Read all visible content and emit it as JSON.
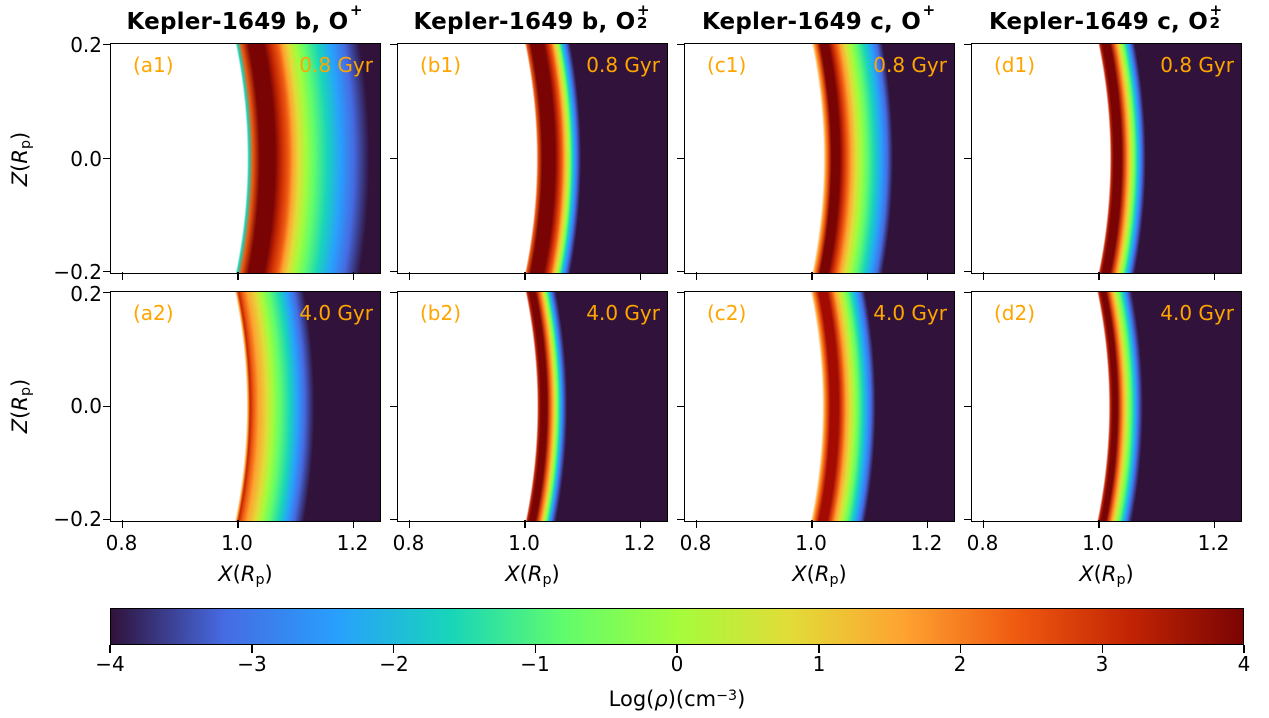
{
  "figure": {
    "annotation_color": "#ffa500",
    "background_color": "#ffffff",
    "columns": [
      {
        "title_prefix": "Kepler-1649 b, O",
        "title_sub": "",
        "title_sup": "+"
      },
      {
        "title_prefix": "Kepler-1649 b, O",
        "title_sub": "2",
        "title_sup": "+"
      },
      {
        "title_prefix": "Kepler-1649 c, O",
        "title_sub": "",
        "title_sup": "+"
      },
      {
        "title_prefix": "Kepler-1649 c, O",
        "title_sub": "2",
        "title_sup": "+"
      }
    ],
    "panels": [
      {
        "label": "(a1)",
        "time": "0.8 Gyr"
      },
      {
        "label": "(b1)",
        "time": "0.8 Gyr"
      },
      {
        "label": "(c1)",
        "time": "0.8 Gyr"
      },
      {
        "label": "(d1)",
        "time": "0.8 Gyr"
      },
      {
        "label": "(a2)",
        "time": "4.0 Gyr"
      },
      {
        "label": "(b2)",
        "time": "4.0 Gyr"
      },
      {
        "label": "(c2)",
        "time": "4.0 Gyr"
      },
      {
        "label": "(d2)",
        "time": "4.0 Gyr"
      }
    ],
    "axes": {
      "x_ticks": [
        "0.8",
        "1.0",
        "1.2"
      ],
      "z_ticks": [
        "0.2",
        "0.0",
        "−0.2"
      ],
      "x_label": {
        "v": "X",
        "open": "(",
        "r": "R",
        "sub": "p",
        "close": ")"
      },
      "z_label": {
        "v": "Z",
        "open": "(",
        "r": "R",
        "sub": "p",
        "close": ")"
      }
    },
    "colorbar": {
      "ticks": [
        "−4",
        "−3",
        "−2",
        "−1",
        "0",
        "1",
        "2",
        "3",
        "4"
      ],
      "label": {
        "pre": "Log(",
        "rho": "ρ",
        "mid": ")(cm",
        "exp": "−3",
        "close": ")"
      }
    }
  },
  "chart_data": {
    "type": "heatmap",
    "description": "2x4 grid of 2D ion density slices around Kepler-1649 b and c for O+ and O2+ at ages 0.8 Gyr and 4.0 Gyr. Density forms a thin shell just above the planet surface (r ≈ 1 planetary radius) peaking near Log(ρ)=4 and decaying outward to the background value of −4.",
    "x_axis": {
      "label": "X(R_p)",
      "ticks": [
        0.8,
        1.0,
        1.2
      ],
      "range": [
        0.78,
        1.25
      ]
    },
    "z_axis": {
      "label": "Z(R_p)",
      "ticks": [
        0.2,
        0.0,
        -0.2
      ],
      "range": [
        -0.21,
        0.21
      ]
    },
    "colorbar": {
      "label": "Log(ρ)(cm−3)",
      "range": [
        -4,
        4
      ],
      "ticks": [
        -4,
        -3,
        -2,
        -1,
        0,
        1,
        2,
        3,
        4
      ],
      "colormap": "turbo",
      "anchors": [
        "#30123b",
        "#466be3",
        "#28a0fd",
        "#18d5ba",
        "#61fc6c",
        "#a4fc3c",
        "#e2dc38",
        "#fea331",
        "#ef5a11",
        "#c22403",
        "#7a0403"
      ]
    },
    "panels": [
      {
        "id": "a1",
        "planet": "Kepler-1649 b",
        "ion": "O+",
        "age_gyr": 0.8,
        "surface_radius": 1.015,
        "peak_log_density": 4.0,
        "outer_extent": 1.22,
        "profile": [
          [
            1.014,
            "#ffffff"
          ],
          [
            1.017,
            "#18d5ba"
          ],
          [
            1.024,
            "#ef5a11"
          ],
          [
            1.036,
            "#7a0403"
          ],
          [
            1.062,
            "#7a0403"
          ],
          [
            1.072,
            "#c22403"
          ],
          [
            1.085,
            "#ef5a11"
          ],
          [
            1.093,
            "#fea331"
          ],
          [
            1.103,
            "#e2dc38"
          ],
          [
            1.115,
            "#a4fc3c"
          ],
          [
            1.13,
            "#61fc6c"
          ],
          [
            1.152,
            "#18d5ba"
          ],
          [
            1.175,
            "#28a0fd"
          ],
          [
            1.198,
            "#466be3"
          ],
          [
            1.225,
            "#30123b"
          ]
        ]
      },
      {
        "id": "b1",
        "planet": "Kepler-1649 b",
        "ion": "O2+",
        "age_gyr": 0.8,
        "surface_radius": 1.018,
        "peak_log_density": 4.0,
        "outer_extent": 1.1,
        "profile": [
          [
            1.018,
            "#ffffff"
          ],
          [
            1.021,
            "#ef5a11"
          ],
          [
            1.028,
            "#7a0403"
          ],
          [
            1.05,
            "#7a0403"
          ],
          [
            1.056,
            "#c22403"
          ],
          [
            1.062,
            "#ef5a11"
          ],
          [
            1.066,
            "#fea331"
          ],
          [
            1.07,
            "#e2dc38"
          ],
          [
            1.074,
            "#a4fc3c"
          ],
          [
            1.077,
            "#61fc6c"
          ],
          [
            1.08,
            "#18d5ba"
          ],
          [
            1.084,
            "#28a0fd"
          ],
          [
            1.088,
            "#466be3"
          ],
          [
            1.095,
            "#30123b"
          ]
        ]
      },
      {
        "id": "c1",
        "planet": "Kepler-1649 c",
        "ion": "O+",
        "age_gyr": 0.8,
        "surface_radius": 1.018,
        "peak_log_density": 4.0,
        "outer_extent": 1.14,
        "profile": [
          [
            1.018,
            "#ffffff"
          ],
          [
            1.022,
            "#fea331"
          ],
          [
            1.026,
            "#ef5a11"
          ],
          [
            1.032,
            "#7a0403"
          ],
          [
            1.046,
            "#7a0403"
          ],
          [
            1.052,
            "#c22403"
          ],
          [
            1.059,
            "#ef5a11"
          ],
          [
            1.066,
            "#fea331"
          ],
          [
            1.074,
            "#e2dc38"
          ],
          [
            1.083,
            "#a4fc3c"
          ],
          [
            1.093,
            "#61fc6c"
          ],
          [
            1.106,
            "#18d5ba"
          ],
          [
            1.118,
            "#28a0fd"
          ],
          [
            1.128,
            "#466be3"
          ],
          [
            1.138,
            "#30123b"
          ]
        ]
      },
      {
        "id": "d1",
        "planet": "Kepler-1649 c",
        "ion": "O2+",
        "age_gyr": 0.8,
        "surface_radius": 1.017,
        "peak_log_density": 4.0,
        "outer_extent": 1.08,
        "profile": [
          [
            1.017,
            "#ffffff"
          ],
          [
            1.02,
            "#c22403"
          ],
          [
            1.024,
            "#7a0403"
          ],
          [
            1.037,
            "#7a0403"
          ],
          [
            1.044,
            "#ef5a11"
          ],
          [
            1.048,
            "#fea331"
          ],
          [
            1.052,
            "#e2dc38"
          ],
          [
            1.056,
            "#a4fc3c"
          ],
          [
            1.06,
            "#61fc6c"
          ],
          [
            1.064,
            "#18d5ba"
          ],
          [
            1.068,
            "#28a0fd"
          ],
          [
            1.072,
            "#466be3"
          ],
          [
            1.079,
            "#30123b"
          ]
        ]
      },
      {
        "id": "a2",
        "planet": "Kepler-1649 b",
        "ion": "O+",
        "age_gyr": 4.0,
        "surface_radius": 1.013,
        "peak_log_density": 3.0,
        "outer_extent": 1.13,
        "profile": [
          [
            1.013,
            "#ffffff"
          ],
          [
            1.016,
            "#fea331"
          ],
          [
            1.019,
            "#c22403"
          ],
          [
            1.025,
            "#ef5a11"
          ],
          [
            1.034,
            "#fea331"
          ],
          [
            1.048,
            "#e2dc38"
          ],
          [
            1.058,
            "#a4fc3c"
          ],
          [
            1.071,
            "#61fc6c"
          ],
          [
            1.088,
            "#18d5ba"
          ],
          [
            1.101,
            "#28a0fd"
          ],
          [
            1.113,
            "#466be3"
          ],
          [
            1.13,
            "#30123b"
          ]
        ]
      },
      {
        "id": "b2",
        "planet": "Kepler-1649 b",
        "ion": "O2+",
        "age_gyr": 4.0,
        "surface_radius": 1.019,
        "peak_log_density": 4.0,
        "outer_extent": 1.07,
        "profile": [
          [
            1.019,
            "#ffffff"
          ],
          [
            1.022,
            "#c22403"
          ],
          [
            1.026,
            "#7a0403"
          ],
          [
            1.036,
            "#7a0403"
          ],
          [
            1.042,
            "#ef5a11"
          ],
          [
            1.046,
            "#fea331"
          ],
          [
            1.049,
            "#e2dc38"
          ],
          [
            1.052,
            "#a4fc3c"
          ],
          [
            1.055,
            "#61fc6c"
          ],
          [
            1.058,
            "#18d5ba"
          ],
          [
            1.061,
            "#28a0fd"
          ],
          [
            1.064,
            "#466be3"
          ],
          [
            1.071,
            "#30123b"
          ]
        ]
      },
      {
        "id": "c2",
        "planet": "Kepler-1649 c",
        "ion": "O+",
        "age_gyr": 4.0,
        "surface_radius": 1.016,
        "peak_log_density": 3.5,
        "outer_extent": 1.11,
        "profile": [
          [
            1.016,
            "#ffffff"
          ],
          [
            1.02,
            "#fea331"
          ],
          [
            1.024,
            "#ef5a11"
          ],
          [
            1.03,
            "#a30b02"
          ],
          [
            1.044,
            "#a30b02"
          ],
          [
            1.052,
            "#ef5a11"
          ],
          [
            1.057,
            "#fea331"
          ],
          [
            1.064,
            "#e2dc38"
          ],
          [
            1.071,
            "#a4fc3c"
          ],
          [
            1.078,
            "#61fc6c"
          ],
          [
            1.086,
            "#18d5ba"
          ],
          [
            1.093,
            "#28a0fd"
          ],
          [
            1.1,
            "#466be3"
          ],
          [
            1.108,
            "#30123b"
          ]
        ]
      },
      {
        "id": "d2",
        "planet": "Kepler-1649 c",
        "ion": "O2+",
        "age_gyr": 4.0,
        "surface_radius": 1.015,
        "peak_log_density": 4.0,
        "outer_extent": 1.07,
        "profile": [
          [
            1.015,
            "#ffffff"
          ],
          [
            1.018,
            "#c22403"
          ],
          [
            1.022,
            "#7a0403"
          ],
          [
            1.03,
            "#7a0403"
          ],
          [
            1.036,
            "#ef5a11"
          ],
          [
            1.04,
            "#fea331"
          ],
          [
            1.044,
            "#e2dc38"
          ],
          [
            1.048,
            "#a4fc3c"
          ],
          [
            1.053,
            "#61fc6c"
          ],
          [
            1.058,
            "#18d5ba"
          ],
          [
            1.062,
            "#28a0fd"
          ],
          [
            1.066,
            "#466be3"
          ],
          [
            1.074,
            "#30123b"
          ]
        ]
      }
    ]
  }
}
